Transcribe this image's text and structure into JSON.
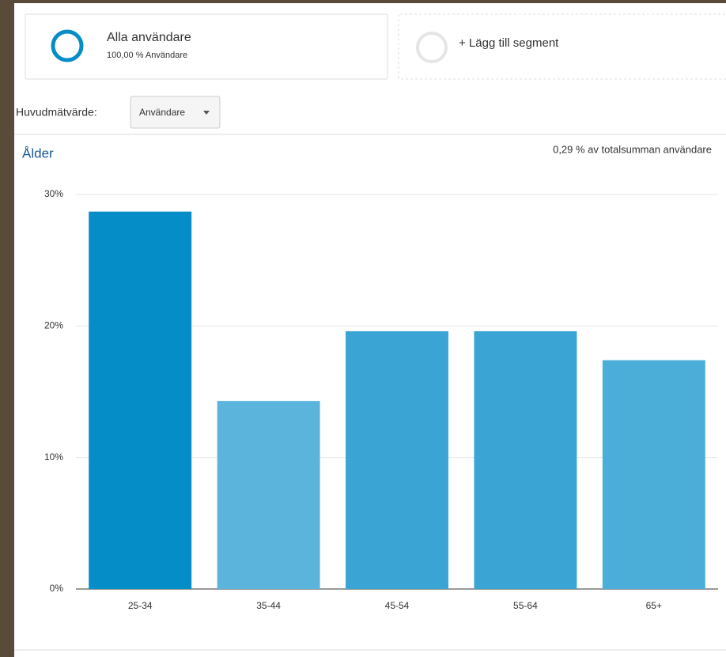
{
  "segments": [
    {
      "title": "Alla användare",
      "subtitle": "100,00 % Användare"
    },
    {
      "title": "+ Lägg till segment"
    }
  ],
  "metric": {
    "label": "Huvudmätvärde:",
    "selected": "Användare"
  },
  "chart_data": {
    "type": "bar",
    "title": "Ålder",
    "subtitle": "0,29 % av totalsumman användare",
    "categories": [
      "25-34",
      "35-44",
      "45-54",
      "55-64",
      "65+"
    ],
    "values": [
      28.7,
      14.3,
      19.6,
      19.6,
      17.4
    ],
    "colors": [
      "#058dc7",
      "#5ab4dc",
      "#3aa5d5",
      "#3aa5d5",
      "#4aaed9"
    ],
    "ylim": [
      0,
      30
    ],
    "yticks": [
      {
        "value": 0,
        "label": "0%"
      },
      {
        "value": 10,
        "label": "10%"
      },
      {
        "value": 20,
        "label": "20%"
      },
      {
        "value": 30,
        "label": "30%"
      }
    ],
    "grid": true
  }
}
